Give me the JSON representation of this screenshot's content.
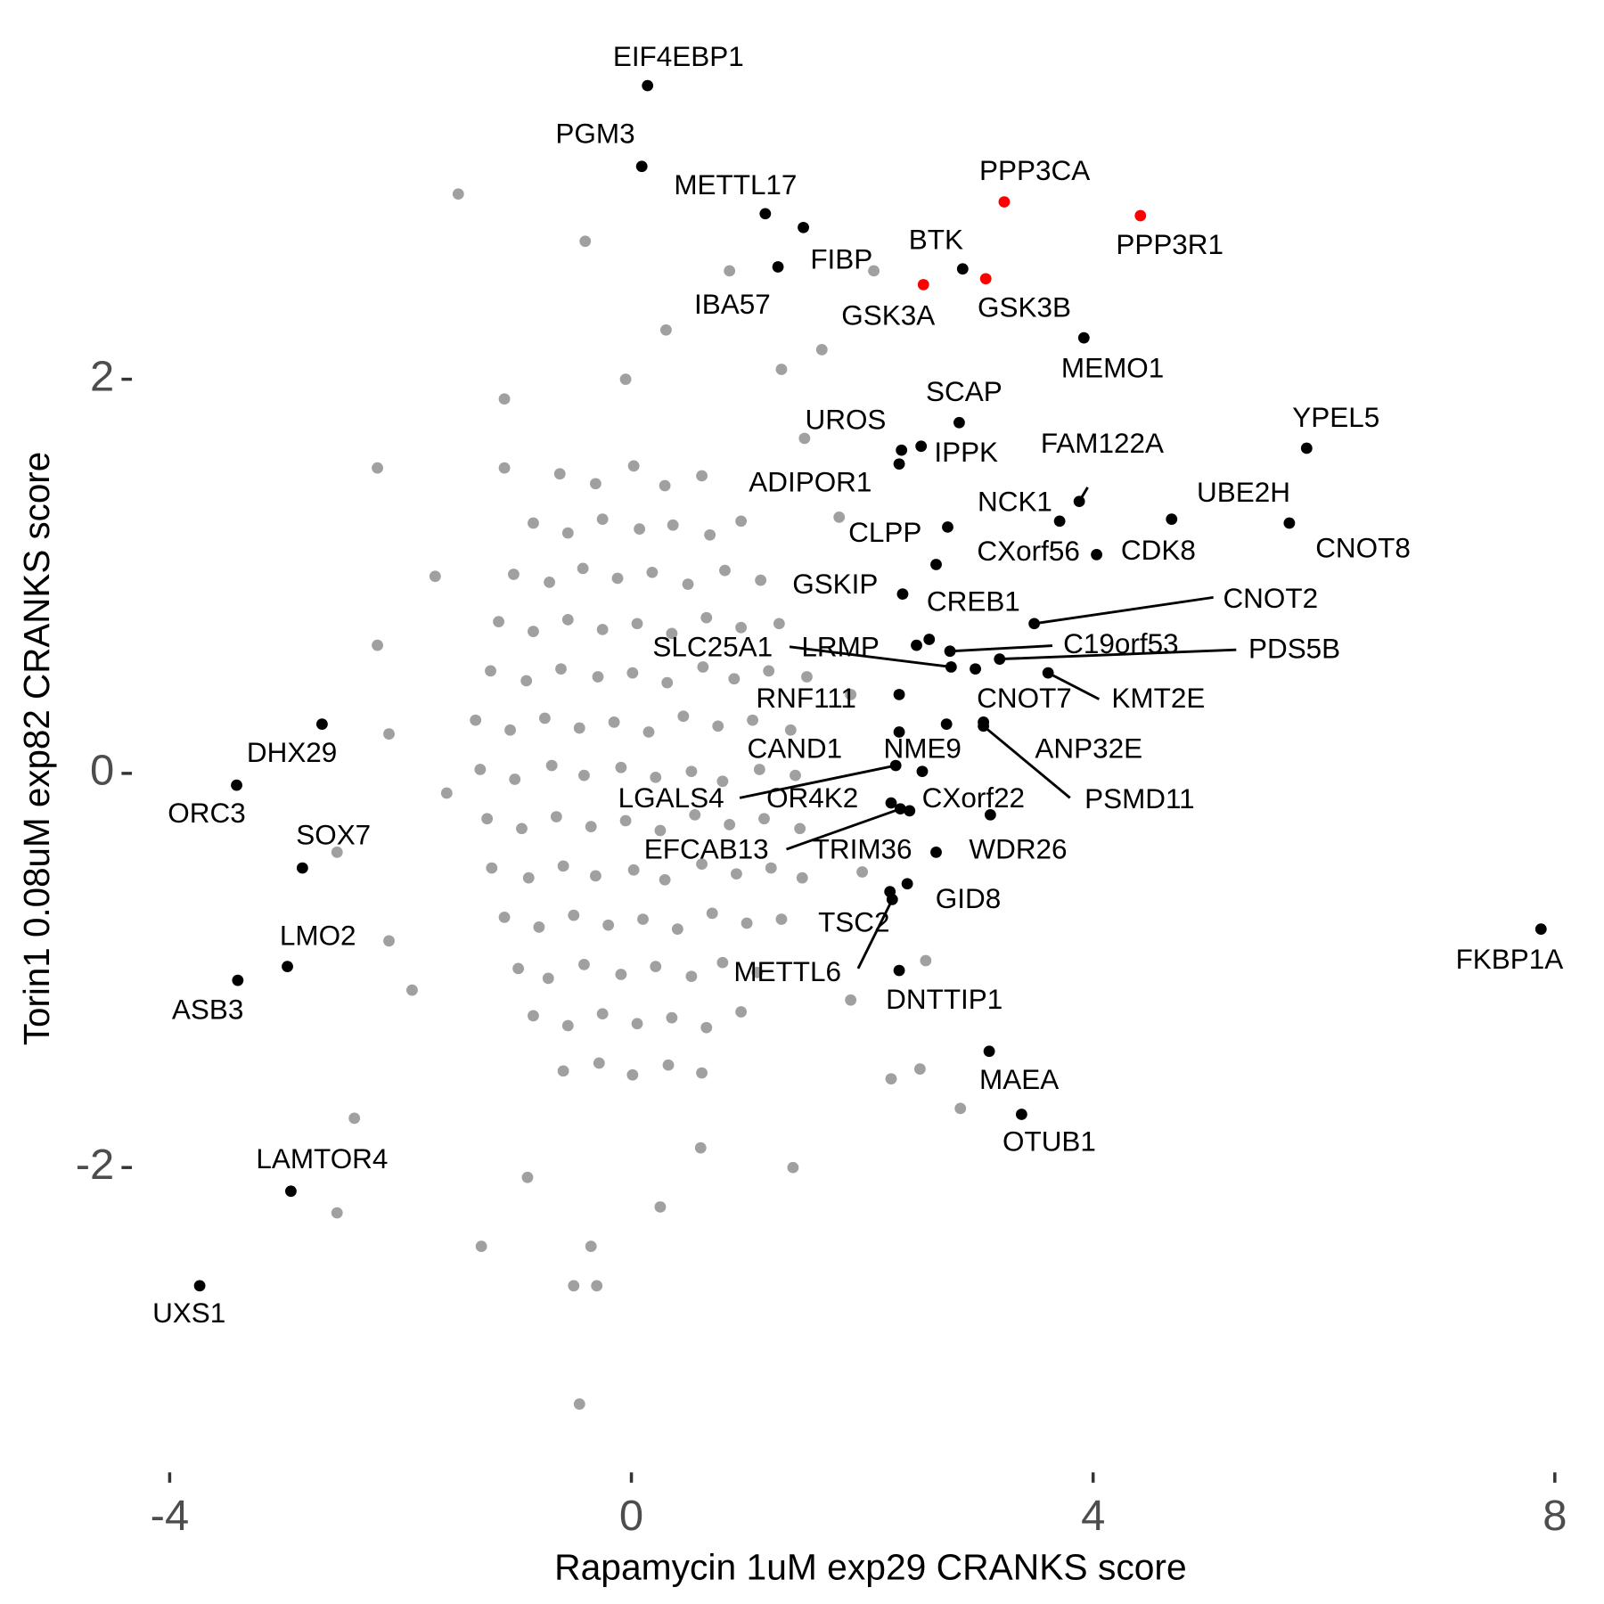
{
  "chart_data": {
    "type": "scatter",
    "x_label": "Rapamycin 1uM exp29 CRANKS score",
    "y_label": "Torin1 0.08uM exp82 CRANKS score",
    "xlim": [
      -4.3,
      8.3
    ],
    "ylim": [
      -3.5,
      3.7
    ],
    "xticks": [
      -4,
      0,
      4,
      8
    ],
    "yticks": [
      -2,
      0,
      2
    ],
    "grid": false,
    "series": [
      {
        "color": "#a0a0a0",
        "x": [
          -0.62,
          -0.31,
          0.02,
          0.29,
          0.61,
          -0.85,
          -0.55,
          -0.25,
          0.07,
          0.36,
          0.68,
          0.95,
          -1.02,
          -0.71,
          -0.42,
          -0.12,
          0.18,
          0.49,
          0.81,
          1.12,
          -1.15,
          -0.85,
          -0.55,
          -0.25,
          0.05,
          0.35,
          0.65,
          0.95,
          1.28,
          -1.22,
          -0.91,
          -0.61,
          -0.29,
          0.01,
          0.31,
          0.62,
          0.89,
          1.19,
          1.52,
          -1.35,
          -1.05,
          -0.75,
          -0.45,
          -0.15,
          0.15,
          0.45,
          0.75,
          1.05,
          1.38,
          -1.31,
          -1.01,
          -0.69,
          -0.41,
          -0.09,
          0.21,
          0.52,
          0.79,
          1.11,
          1.42,
          -1.25,
          -0.95,
          -0.65,
          -0.35,
          -0.05,
          0.25,
          0.55,
          0.85,
          1.15,
          1.46,
          -1.21,
          -0.89,
          -0.59,
          -0.31,
          0.02,
          0.29,
          0.61,
          0.91,
          1.21,
          1.48,
          -1.1,
          -0.8,
          -0.5,
          -0.2,
          0.1,
          0.4,
          0.7,
          1.0,
          1.3,
          -0.98,
          -0.72,
          -0.41,
          -0.09,
          0.21,
          0.52,
          0.79,
          1.09,
          -0.85,
          -0.55,
          -0.25,
          0.05,
          0.35,
          0.65,
          0.95,
          -0.59,
          -0.28,
          0.01,
          0.32,
          0.61,
          -1.5,
          -0.4,
          0.3,
          -0.05,
          0.85,
          2.1,
          1.65,
          1.3,
          -1.1,
          -2.2,
          -1.1,
          -2.1,
          -2.55,
          -2.2,
          -2.1,
          -2.4,
          -2.55,
          -1.3,
          -0.5,
          -0.3,
          -0.35,
          -0.45,
          0.25,
          1.4,
          2.25,
          2.85,
          2.5,
          2.55,
          1.9,
          1.9,
          2.0,
          1.8,
          -1.9,
          -1.7,
          -0.9,
          0.6,
          1.5,
          -1.6
        ],
        "y": [
          1.52,
          1.47,
          1.56,
          1.46,
          1.51,
          1.27,
          1.22,
          1.29,
          1.24,
          1.26,
          1.21,
          1.28,
          1.01,
          0.97,
          1.04,
          0.99,
          1.02,
          0.96,
          1.03,
          0.98,
          0.77,
          0.72,
          0.78,
          0.73,
          0.76,
          0.71,
          0.79,
          0.74,
          0.76,
          0.52,
          0.47,
          0.53,
          0.49,
          0.51,
          0.46,
          0.54,
          0.48,
          0.52,
          0.49,
          0.27,
          0.22,
          0.28,
          0.23,
          0.26,
          0.21,
          0.29,
          0.24,
          0.27,
          0.22,
          0.02,
          -0.03,
          0.04,
          -0.01,
          0.03,
          -0.02,
          0.01,
          -0.04,
          0.02,
          -0.01,
          -0.23,
          -0.28,
          -0.22,
          -0.27,
          -0.24,
          -0.29,
          -0.21,
          -0.26,
          -0.23,
          -0.28,
          -0.48,
          -0.53,
          -0.47,
          -0.52,
          -0.49,
          -0.54,
          -0.46,
          -0.51,
          -0.48,
          -0.53,
          -0.73,
          -0.78,
          -0.72,
          -0.77,
          -0.74,
          -0.79,
          -0.71,
          -0.76,
          -0.74,
          -0.99,
          -1.04,
          -0.97,
          -1.02,
          -0.98,
          -1.03,
          -0.96,
          -1.01,
          -1.23,
          -1.28,
          -1.22,
          -1.27,
          -1.24,
          -1.29,
          -1.21,
          -1.51,
          -1.47,
          -1.53,
          -1.48,
          -1.52,
          2.94,
          2.7,
          2.25,
          2.0,
          2.55,
          2.55,
          2.15,
          2.05,
          1.55,
          1.55,
          1.9,
          0.2,
          -0.4,
          0.65,
          -0.85,
          -1.75,
          -2.23,
          -2.4,
          -2.6,
          -2.6,
          -2.4,
          -3.2,
          -2.2,
          -2.0,
          -1.55,
          -1.7,
          -1.5,
          -0.95,
          -1.15,
          0.4,
          -0.5,
          1.3,
          -1.1,
          1.0,
          -2.05,
          -1.9,
          1.7,
          -0.1
        ]
      },
      {
        "color": "#000000",
        "x": [
          0.14,
          0.09,
          1.16,
          1.49,
          1.27,
          2.87,
          3.92,
          2.84,
          2.51,
          2.34,
          2.32,
          5.85,
          3.88,
          3.71,
          4.68,
          5.7,
          2.74,
          2.64,
          4.03,
          2.35,
          2.58,
          3.49,
          2.76,
          3.19,
          2.77,
          2.47,
          3.61,
          2.98,
          2.32,
          3.05,
          3.05,
          2.32,
          2.52,
          2.29,
          2.25,
          2.41,
          2.33,
          2.64,
          3.11,
          2.39,
          2.24,
          2.26,
          2.32,
          3.1,
          3.38,
          7.88,
          -2.68,
          -3.42,
          -2.85,
          -2.98,
          -3.41,
          -2.95,
          -3.74,
          2.73
        ],
        "y": [
          3.49,
          3.08,
          2.84,
          2.77,
          2.57,
          2.56,
          2.21,
          1.78,
          1.66,
          1.64,
          1.57,
          1.65,
          1.38,
          1.28,
          1.29,
          1.27,
          1.25,
          1.06,
          1.11,
          0.91,
          0.68,
          0.76,
          0.62,
          0.58,
          0.54,
          0.65,
          0.51,
          0.53,
          0.4,
          0.26,
          0.24,
          0.21,
          0.01,
          0.04,
          -0.15,
          -0.19,
          -0.18,
          -0.4,
          -0.21,
          -0.56,
          -0.6,
          -0.64,
          -1.0,
          -1.41,
          -1.73,
          -0.79,
          0.25,
          -0.06,
          -0.48,
          -0.98,
          -1.05,
          -2.12,
          -2.6,
          0.25
        ],
        "labels": [
          "EIF4EBP1",
          "PGM3",
          "METTL17",
          "IBA57",
          "FIBP",
          "BTK",
          "MEMO1",
          "SCAP",
          "IPPK",
          "UROS",
          "ADIPOR1",
          "YPEL5",
          "FAM122A",
          "NCK1",
          "UBE2H",
          "CNOT8",
          "CLPP",
          "CXorf56",
          "CDK8",
          "GSKIP",
          "CREB1",
          "CNOT2",
          "C19orf53",
          "PDS5B",
          "SLC25A1",
          "LRMP",
          "KMT2E",
          "CNOT7",
          "RNF111",
          "ANP32E",
          "PSMD11",
          "CAND1",
          "NME9",
          "LGALS4",
          "OR4K2",
          "CXorf22",
          "EFCAB13",
          "TRIM36",
          "WDR26",
          "GID8",
          "TSC2",
          "METTL6",
          "DNTTIP1",
          "MAEA",
          "OTUB1",
          "FKBP1A",
          "DHX29",
          "ORC3",
          "SOX7",
          "LMO2",
          "ASB3",
          "LAMTOR4",
          "UXS1",
          null
        ]
      },
      {
        "color": "#ff0000",
        "x": [
          3.23,
          4.41,
          3.07,
          2.53
        ],
        "y": [
          2.9,
          2.83,
          2.51,
          2.48
        ],
        "labels": [
          "PPP3CA",
          "PPP3R1",
          "GSK3B",
          "GSK3A"
        ]
      }
    ]
  }
}
